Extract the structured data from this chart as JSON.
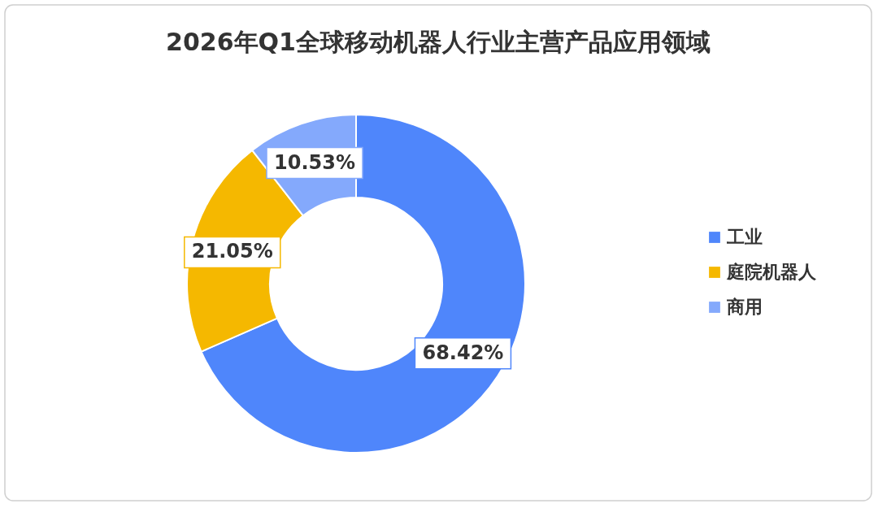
{
  "chart_data": {
    "type": "donut",
    "title": "2026年Q1全球移动机器人行业主营产品应用领域",
    "categories": [
      "工业",
      "庭院机器人",
      "商用"
    ],
    "values": [
      68.42,
      21.05,
      10.53
    ],
    "colors": [
      "#4f86fb",
      "#f5b800",
      "#84a9fc"
    ],
    "value_labels": [
      "68.42%",
      "21.05%",
      "10.53%"
    ],
    "legend": "right"
  }
}
